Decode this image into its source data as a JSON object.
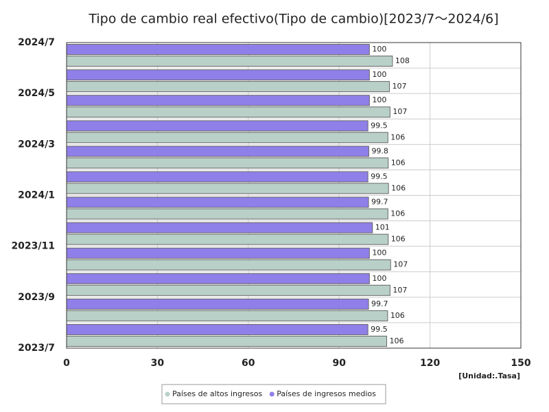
{
  "chart_data": {
    "type": "bar",
    "orientation": "horizontal",
    "title": "Tipo de cambio real efectivo(Tipo de cambio)[2023/7～2024/6]",
    "unit_label": "[Unidad:.Tasa]",
    "categories": [
      null,
      null,
      null,
      null,
      null,
      null,
      null,
      null,
      null,
      null,
      null,
      null
    ],
    "ytick_labels": [
      "2023/7",
      "2023/9",
      "2023/11",
      "2024/1",
      "2024/3",
      "2024/5",
      "2024/7"
    ],
    "series": [
      {
        "name": "Países de altos ingresos",
        "color": "#b9d0c8",
        "values": [
          105.7,
          106.0,
          106.8,
          107.0,
          106.2,
          106.1,
          106.3,
          106.2,
          106.1,
          106.8,
          106.6,
          107.6
        ],
        "value_labels": [
          "106",
          "106",
          "107",
          "107",
          "106",
          "106",
          "106",
          "106",
          "106",
          "107",
          "107",
          "108"
        ]
      },
      {
        "name": "Países de ingresos medios",
        "color": "#8f7fe8",
        "values": [
          99.5,
          99.7,
          100,
          100,
          101,
          99.7,
          99.5,
          99.8,
          99.5,
          100,
          100,
          100
        ]
      }
    ],
    "xlim": [
      0,
      150
    ],
    "xticks": [
      0,
      30,
      60,
      90,
      120,
      150
    ],
    "grid": true
  }
}
